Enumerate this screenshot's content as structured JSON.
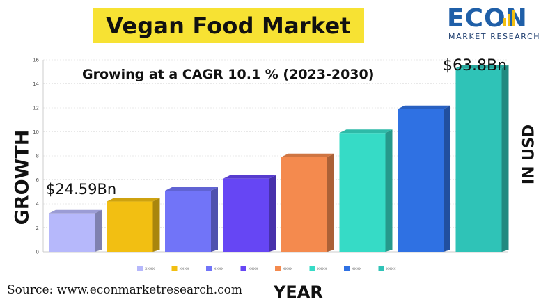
{
  "header": {
    "title": "Vegan Food Market",
    "title_bg": "#f7e233"
  },
  "logo": {
    "word": "ECON",
    "sub": "MARKET RESEARCH",
    "color": "#1f5fa8"
  },
  "subtitle": "Growing at a CAGR 10.1 % (2023-2030)",
  "labels": {
    "y_left": "GROWTH",
    "y_right": "IN USD",
    "x": "YEAR"
  },
  "annotations": {
    "start": "$24.59Bn",
    "end": "$63.8Bn"
  },
  "source": "Source: www.econmarketresearch.com",
  "chart_data": {
    "type": "bar",
    "ylim": [
      0,
      16
    ],
    "yticks": [
      "0",
      "2",
      "4",
      "6",
      "8",
      "10",
      "12",
      "14",
      "16"
    ],
    "grid": true,
    "legend_position": "bottom",
    "series": [
      {
        "name": "xxxx",
        "value": 3.2,
        "color": "#b6b8fb"
      },
      {
        "name": "xxxx",
        "value": 4.2,
        "color": "#f2bf12"
      },
      {
        "name": "xxxx",
        "value": 5.1,
        "color": "#7174f8"
      },
      {
        "name": "xxxx",
        "value": 6.1,
        "color": "#6646f4"
      },
      {
        "name": "xxxx",
        "value": 7.9,
        "color": "#f48a4e"
      },
      {
        "name": "xxxx",
        "value": 9.9,
        "color": "#36dbc6"
      },
      {
        "name": "xxxx",
        "value": 11.9,
        "color": "#2f71e3"
      },
      {
        "name": "xxxx",
        "value": 15.3,
        "color": "#2fc3b7"
      }
    ]
  }
}
